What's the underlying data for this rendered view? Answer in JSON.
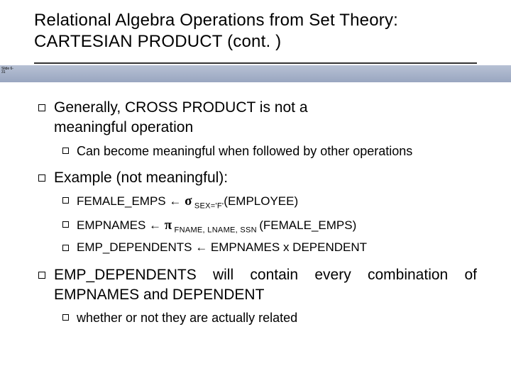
{
  "colors": {
    "background": "#ffffff",
    "text": "#000000",
    "band_top": "#b7c1d4",
    "band_bottom": "#99a6c0",
    "rule": "#333333"
  },
  "typography": {
    "family": "Arial, Helvetica, sans-serif",
    "title_fontsize": 24,
    "l1_fontsize": 21,
    "l2_fontsize": 18,
    "formula_fontsize": 17,
    "subscript_fontsize": 11
  },
  "title": {
    "line1": "Relational Algebra Operations from Set Theory:",
    "line2": "CARTESIAN PRODUCT (cont. )"
  },
  "band": {
    "label_line1": "Slide 6-",
    "label_line2": "31"
  },
  "b1": {
    "line1": "Generally,  CROSS  PRODUCT  is  not  a",
    "line2": "meaningful operation",
    "sub": {
      "pre": "Can",
      "rest": " become meaningful when followed by other operations"
    }
  },
  "b2": {
    "text": "Example (not meaningful):",
    "f1": {
      "a": "FEMALE_EMPS ",
      "arrow": "←",
      "sigma": " σ",
      "sub": " SEX='F'",
      "b": "(EMPLOYEE)"
    },
    "f2": {
      "a": "EMPNAMES ",
      "arrow": "←",
      "pi": " π",
      "sub": " FNAME, LNAME, SSN ",
      "b": "(FEMALE_EMPS)"
    },
    "f3": {
      "a": "EMP_DEPENDENTS ",
      "arrow": "←",
      "b": " EMPNAMES x DEPENDENT"
    }
  },
  "b3": {
    "text": "EMP_DEPENDENTS will contain every combination of EMPNAMES and DEPENDENT",
    "sub": "whether or not they are actually related"
  }
}
